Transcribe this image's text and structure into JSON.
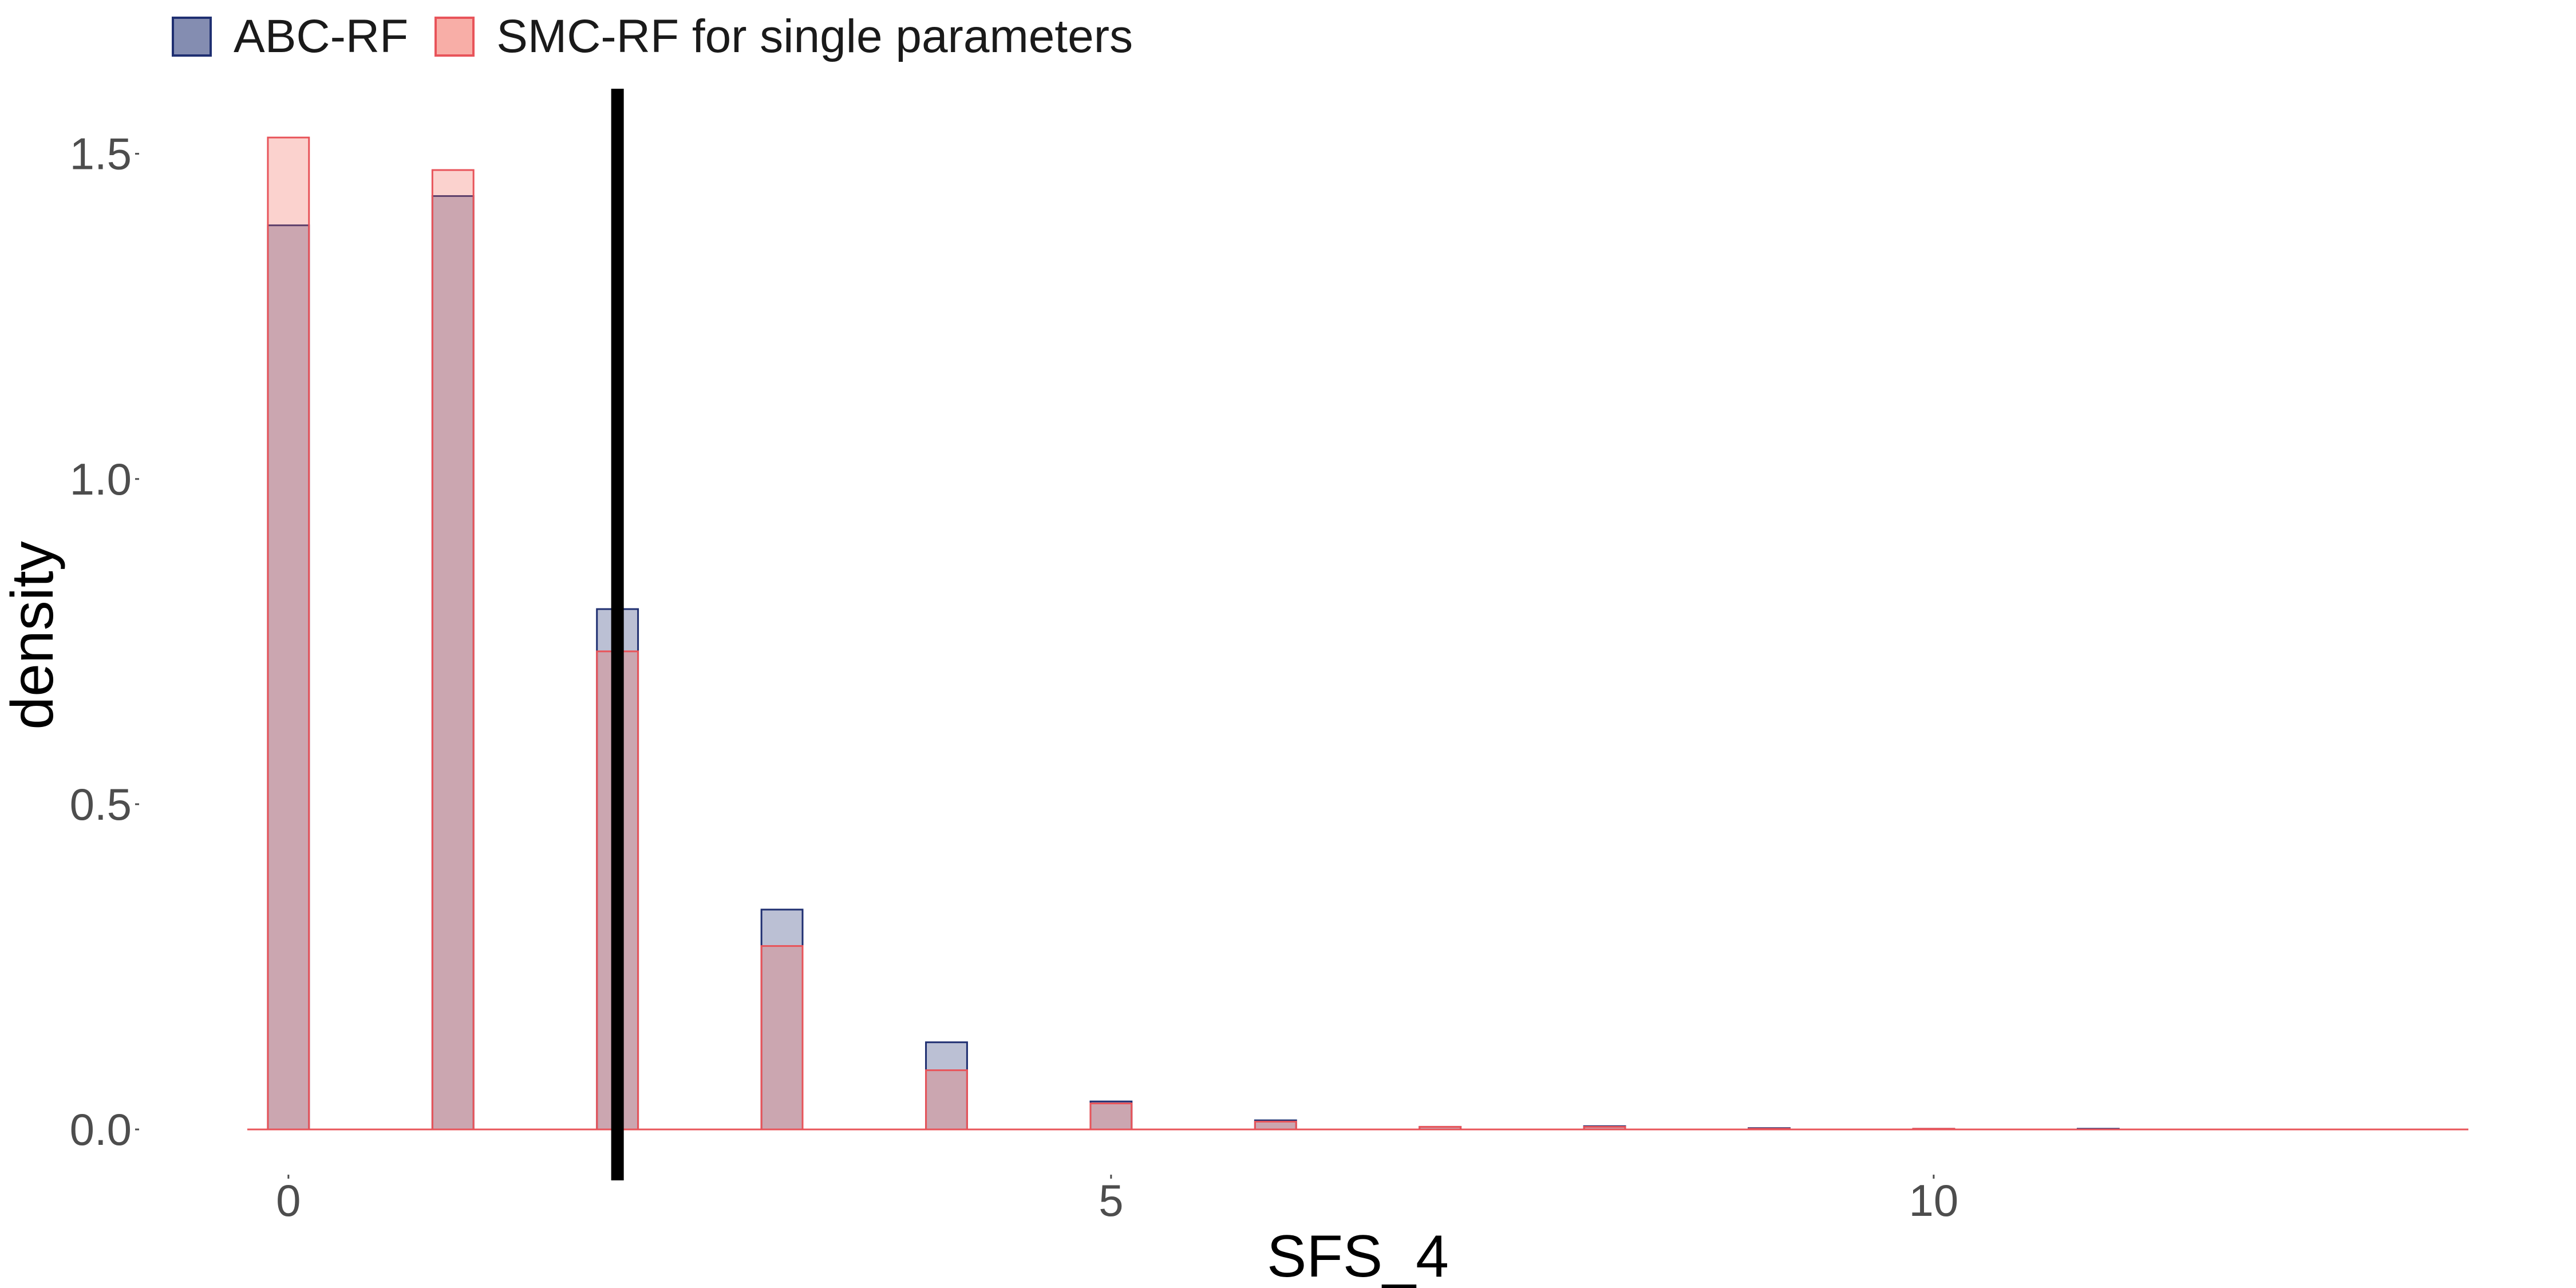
{
  "chart_data": {
    "type": "bar",
    "xlabel": "SFS_4",
    "ylabel": "density",
    "xlim": [
      -0.25,
      13.25
    ],
    "ylim": [
      0,
      1.6
    ],
    "xticks": [
      0,
      5,
      10
    ],
    "xtick_labels": [
      "0",
      "5",
      "10"
    ],
    "yticks": [
      0,
      0.5,
      1.0,
      1.5
    ],
    "ytick_labels": [
      "0.0",
      "0.5",
      "1.0",
      "1.5"
    ],
    "bin_width": 0.25,
    "grid": false,
    "legend_position": "top-left",
    "observed_value": 2,
    "series": [
      {
        "name": "ABC-RF",
        "fill": "#1F2F71",
        "fill_opacity": 0.3,
        "stroke": "#1F2F71",
        "x": [
          0,
          1,
          2,
          3,
          4,
          5,
          6,
          7,
          8,
          9,
          10,
          11,
          12,
          13
        ],
        "values": [
          1.39,
          1.435,
          0.8,
          0.338,
          0.134,
          0.043,
          0.014,
          0.004,
          0.005,
          0.002,
          0.001,
          0.001,
          0.0,
          0.0
        ]
      },
      {
        "name": "SMC-RF for single parameters",
        "fill": "#F26B5E",
        "fill_opacity": 0.3,
        "stroke": "#E8545A",
        "x": [
          0,
          1,
          2,
          3,
          4,
          5,
          6,
          7,
          8,
          9,
          10,
          11,
          12,
          13
        ],
        "values": [
          1.525,
          1.475,
          0.735,
          0.282,
          0.091,
          0.04,
          0.012,
          0.004,
          0.004,
          0.001,
          0.001,
          0.0,
          0.0,
          0.0
        ]
      }
    ]
  }
}
